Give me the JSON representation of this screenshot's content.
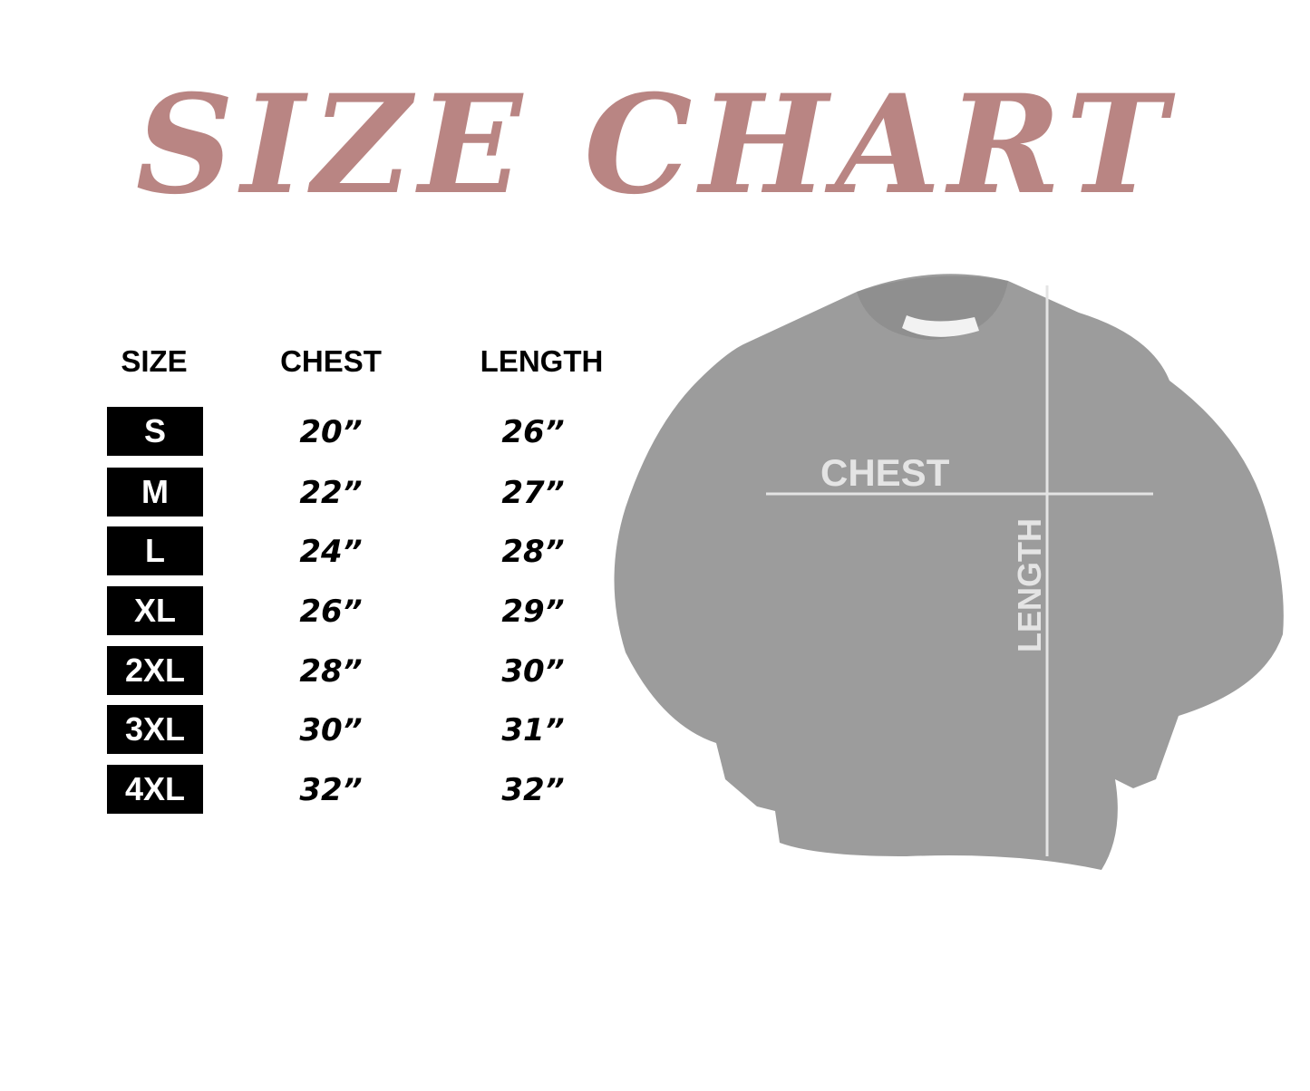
{
  "title": "SIZE CHART",
  "headers": {
    "size": "SIZE",
    "chest": "CHEST",
    "length": "LENGTH"
  },
  "rows": [
    {
      "size": "S",
      "chest": "20”",
      "length": "26”"
    },
    {
      "size": "M",
      "chest": "22”",
      "length": "27”"
    },
    {
      "size": "L",
      "chest": "24”",
      "length": "28”"
    },
    {
      "size": "XL",
      "chest": "26”",
      "length": "29”"
    },
    {
      "size": "2XL",
      "chest": "28”",
      "length": "30”"
    },
    {
      "size": "3XL",
      "chest": "30”",
      "length": "31”"
    },
    {
      "size": "4XL",
      "chest": "32”",
      "length": "32”"
    }
  ],
  "diagram": {
    "chest_label": "CHEST",
    "length_label": "LENGTH"
  },
  "colors": {
    "title": "#b98583",
    "garment": "#9a9a9a",
    "measure_lines": "#e4e4e4"
  }
}
